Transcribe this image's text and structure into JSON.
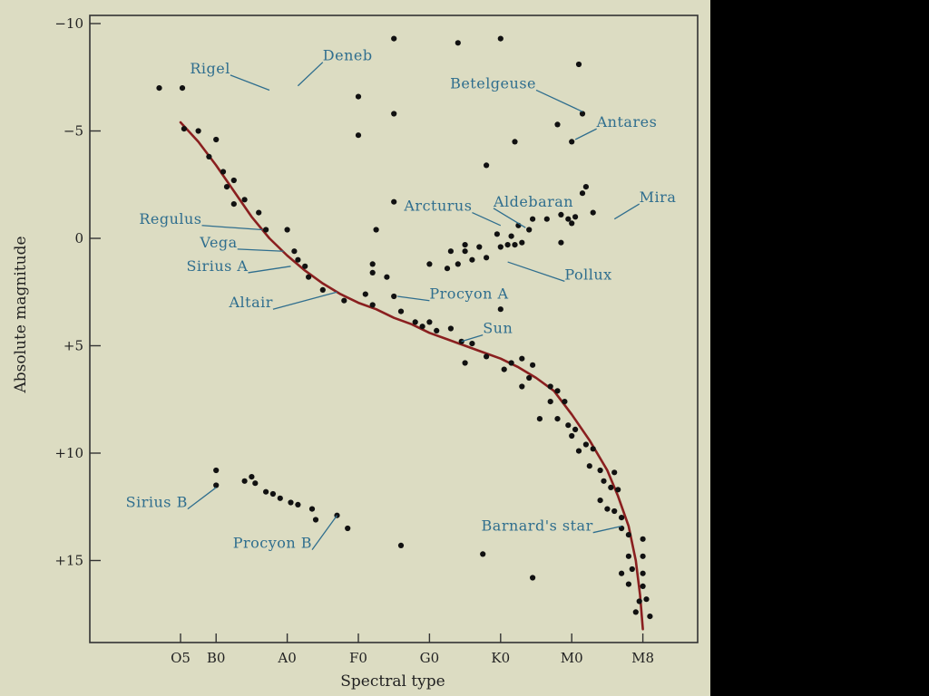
{
  "chart_data": {
    "type": "scatter",
    "title": "",
    "xlabel": "Spectral type",
    "ylabel": "Absolute magnitude",
    "x_tick_labels": [
      "O5",
      "B0",
      "A0",
      "F0",
      "G0",
      "K0",
      "M0",
      "M8"
    ],
    "y_tick_labels": [
      "−10",
      "−5",
      "0",
      "+5",
      "+10",
      "+15"
    ],
    "y_ticks": [
      -10,
      -5,
      0,
      5,
      10,
      15
    ],
    "ylim": [
      -10.5,
      18.5
    ],
    "y_inverted": true,
    "x_scale_note": "O5=0, B0=1, A0=3, F0=5, G0=7, K0=9, M0=11, M8=13",
    "colors": {
      "points": "#111111",
      "main_sequence": "#8a1f1f",
      "labels": "#2f6e8e",
      "background": "#dcdcc2"
    },
    "main_sequence_curve": [
      [
        0.0,
        -5.4
      ],
      [
        0.5,
        -4.5
      ],
      [
        1.0,
        -3.4
      ],
      [
        1.5,
        -2.2
      ],
      [
        2.0,
        -1.0
      ],
      [
        2.5,
        0.0
      ],
      [
        3.0,
        0.8
      ],
      [
        3.5,
        1.5
      ],
      [
        4.0,
        2.1
      ],
      [
        4.5,
        2.6
      ],
      [
        5.0,
        3.0
      ],
      [
        5.5,
        3.3
      ],
      [
        6.0,
        3.7
      ],
      [
        6.5,
        4.0
      ],
      [
        7.0,
        4.4
      ],
      [
        7.5,
        4.7
      ],
      [
        8.0,
        5.0
      ],
      [
        8.5,
        5.3
      ],
      [
        9.0,
        5.6
      ],
      [
        9.5,
        6.0
      ],
      [
        10.0,
        6.5
      ],
      [
        10.5,
        7.1
      ],
      [
        11.0,
        8.2
      ],
      [
        11.5,
        9.4
      ],
      [
        12.0,
        10.8
      ],
      [
        12.3,
        12.0
      ],
      [
        12.6,
        13.4
      ],
      [
        12.8,
        15.0
      ],
      [
        12.92,
        16.6
      ],
      [
        13.0,
        18.2
      ]
    ],
    "series": [
      {
        "name": "",
        "points": [
          [
            -0.6,
            -7.0
          ],
          [
            0.05,
            -7.0
          ],
          [
            5.0,
            -6.6
          ],
          [
            5.0,
            -4.8
          ],
          [
            6.0,
            -5.8
          ],
          [
            6.0,
            -9.3
          ],
          [
            7.8,
            -9.1
          ],
          [
            9.0,
            -9.3
          ],
          [
            11.2,
            -8.1
          ],
          [
            10.6,
            -5.3
          ],
          [
            11.3,
            -5.8
          ],
          [
            11.0,
            -4.5
          ],
          [
            9.4,
            -4.5
          ],
          [
            8.6,
            -3.4
          ],
          [
            9.0,
            3.3
          ],
          [
            11.4,
            -2.4
          ],
          [
            11.3,
            -2.1
          ],
          [
            0.1,
            -5.1
          ],
          [
            0.5,
            -5.0
          ],
          [
            1.0,
            -4.6
          ],
          [
            0.8,
            -3.8
          ],
          [
            1.2,
            -3.1
          ],
          [
            1.3,
            -2.4
          ],
          [
            1.5,
            -2.7
          ],
          [
            1.8,
            -1.8
          ],
          [
            1.5,
            -1.6
          ],
          [
            2.2,
            -1.2
          ],
          [
            2.4,
            -0.4
          ],
          [
            3.0,
            -0.4
          ],
          [
            3.2,
            0.6
          ],
          [
            3.3,
            1.0
          ],
          [
            3.5,
            1.3
          ],
          [
            3.6,
            1.8
          ],
          [
            4.0,
            2.4
          ],
          [
            4.6,
            2.9
          ],
          [
            5.2,
            2.6
          ],
          [
            5.4,
            3.1
          ],
          [
            6.0,
            2.7
          ],
          [
            6.2,
            3.4
          ],
          [
            6.6,
            3.9
          ],
          [
            6.8,
            4.1
          ],
          [
            7.0,
            3.9
          ],
          [
            7.2,
            4.3
          ],
          [
            7.6,
            4.2
          ],
          [
            7.9,
            4.8
          ],
          [
            8.2,
            4.9
          ],
          [
            8.0,
            5.8
          ],
          [
            8.6,
            5.5
          ],
          [
            9.1,
            6.1
          ],
          [
            9.3,
            5.8
          ],
          [
            9.6,
            5.6
          ],
          [
            9.9,
            5.9
          ],
          [
            9.8,
            6.5
          ],
          [
            9.6,
            6.9
          ],
          [
            10.4,
            6.9
          ],
          [
            10.6,
            7.1
          ],
          [
            10.8,
            7.6
          ],
          [
            10.4,
            7.6
          ],
          [
            10.1,
            8.4
          ],
          [
            10.6,
            8.4
          ],
          [
            10.9,
            8.7
          ],
          [
            11.1,
            8.9
          ],
          [
            11.0,
            9.2
          ],
          [
            11.4,
            9.6
          ],
          [
            11.2,
            9.9
          ],
          [
            11.6,
            9.8
          ],
          [
            11.5,
            10.6
          ],
          [
            11.8,
            10.8
          ],
          [
            12.2,
            10.9
          ],
          [
            11.9,
            11.3
          ],
          [
            12.1,
            11.6
          ],
          [
            12.3,
            11.7
          ],
          [
            11.8,
            12.2
          ],
          [
            12.0,
            12.6
          ],
          [
            12.2,
            12.7
          ],
          [
            12.4,
            13.0
          ],
          [
            12.4,
            13.5
          ],
          [
            12.6,
            13.8
          ],
          [
            13.0,
            14.0
          ],
          [
            12.6,
            14.8
          ],
          [
            13.0,
            14.8
          ],
          [
            12.7,
            15.4
          ],
          [
            12.4,
            15.6
          ],
          [
            13.0,
            15.6
          ],
          [
            13.0,
            16.2
          ],
          [
            12.6,
            16.1
          ],
          [
            12.9,
            16.9
          ],
          [
            13.1,
            16.8
          ],
          [
            13.2,
            17.6
          ],
          [
            12.8,
            17.4
          ],
          [
            6.0,
            -1.7
          ],
          [
            5.5,
            -0.4
          ],
          [
            5.4,
            1.2
          ],
          [
            5.4,
            1.6
          ],
          [
            5.8,
            1.8
          ],
          [
            7.0,
            1.2
          ],
          [
            7.5,
            1.4
          ],
          [
            7.6,
            0.6
          ],
          [
            7.8,
            1.2
          ],
          [
            8.0,
            0.3
          ],
          [
            8.0,
            0.6
          ],
          [
            8.2,
            1.0
          ],
          [
            8.4,
            0.4
          ],
          [
            8.6,
            0.9
          ],
          [
            8.9,
            -0.2
          ],
          [
            9.0,
            0.4
          ],
          [
            9.2,
            0.3
          ],
          [
            9.3,
            -0.1
          ],
          [
            9.4,
            0.3
          ],
          [
            9.5,
            -0.6
          ],
          [
            9.6,
            0.2
          ],
          [
            9.8,
            -0.4
          ],
          [
            9.9,
            -0.9
          ],
          [
            10.3,
            -0.9
          ],
          [
            10.7,
            -1.1
          ],
          [
            10.9,
            -0.9
          ],
          [
            11.1,
            -1.0
          ],
          [
            11.6,
            -1.2
          ],
          [
            10.7,
            0.2
          ],
          [
            11.0,
            -0.7
          ],
          [
            2.1,
            11.4
          ],
          [
            1.0,
            10.8
          ],
          [
            1.0,
            11.5
          ],
          [
            1.8,
            11.3
          ],
          [
            2.0,
            11.1
          ],
          [
            2.4,
            11.8
          ],
          [
            2.6,
            11.9
          ],
          [
            2.8,
            12.1
          ],
          [
            3.1,
            12.3
          ],
          [
            3.3,
            12.4
          ],
          [
            3.7,
            12.6
          ],
          [
            3.8,
            13.1
          ],
          [
            4.4,
            12.9
          ],
          [
            4.7,
            13.5
          ],
          [
            6.2,
            14.3
          ],
          [
            8.5,
            14.7
          ],
          [
            9.9,
            15.8
          ]
        ]
      }
    ],
    "annotations": [
      {
        "text": "Rigel",
        "anchor": "end",
        "point": [
          2.5,
          -6.9
        ],
        "label": [
          1.4,
          -7.6
        ]
      },
      {
        "text": "Deneb",
        "anchor": "start",
        "point": [
          3.3,
          -7.1
        ],
        "label": [
          4.0,
          -8.2
        ]
      },
      {
        "text": "Betelgeuse",
        "anchor": "end",
        "point": [
          11.3,
          -5.9
        ],
        "label": [
          10.0,
          -6.9
        ]
      },
      {
        "text": "Antares",
        "anchor": "start",
        "point": [
          11.1,
          -4.6
        ],
        "label": [
          11.7,
          -5.1
        ]
      },
      {
        "text": "Mira",
        "anchor": "start",
        "point": [
          12.2,
          -0.9
        ],
        "label": [
          12.9,
          -1.6
        ]
      },
      {
        "text": "Arcturus",
        "anchor": "end",
        "point": [
          9.0,
          -0.6
        ],
        "label": [
          8.2,
          -1.2
        ]
      },
      {
        "text": "Aldebaran",
        "anchor": "start",
        "point": [
          9.7,
          -0.5
        ],
        "label": [
          8.8,
          -1.4
        ]
      },
      {
        "text": "Regulus",
        "anchor": "end",
        "point": [
          2.3,
          -0.4
        ],
        "label": [
          0.6,
          -0.6
        ]
      },
      {
        "text": "Vega",
        "anchor": "end",
        "point": [
          2.9,
          0.6
        ],
        "label": [
          1.6,
          0.5
        ]
      },
      {
        "text": "Sirius A",
        "anchor": "end",
        "point": [
          3.1,
          1.3
        ],
        "label": [
          1.9,
          1.6
        ]
      },
      {
        "text": "Altair",
        "anchor": "end",
        "point": [
          4.4,
          2.5
        ],
        "label": [
          2.6,
          3.3
        ]
      },
      {
        "text": "Procyon A",
        "anchor": "start",
        "point": [
          6.1,
          2.7
        ],
        "label": [
          7.0,
          2.9
        ]
      },
      {
        "text": "Pollux",
        "anchor": "start",
        "point": [
          9.2,
          1.1
        ],
        "label": [
          10.8,
          2.0
        ]
      },
      {
        "text": "Sun",
        "anchor": "start",
        "point": [
          7.9,
          4.8
        ],
        "label": [
          8.5,
          4.5
        ]
      },
      {
        "text": "Sirius B",
        "anchor": "end",
        "point": [
          1.0,
          11.6
        ],
        "label": [
          0.2,
          12.6
        ]
      },
      {
        "text": "Procyon B",
        "anchor": "end",
        "point": [
          4.4,
          12.9
        ],
        "label": [
          3.7,
          14.5
        ]
      },
      {
        "text": "Barnard's star",
        "anchor": "end",
        "point": [
          12.4,
          13.4
        ],
        "label": [
          11.6,
          13.7
        ]
      }
    ]
  }
}
